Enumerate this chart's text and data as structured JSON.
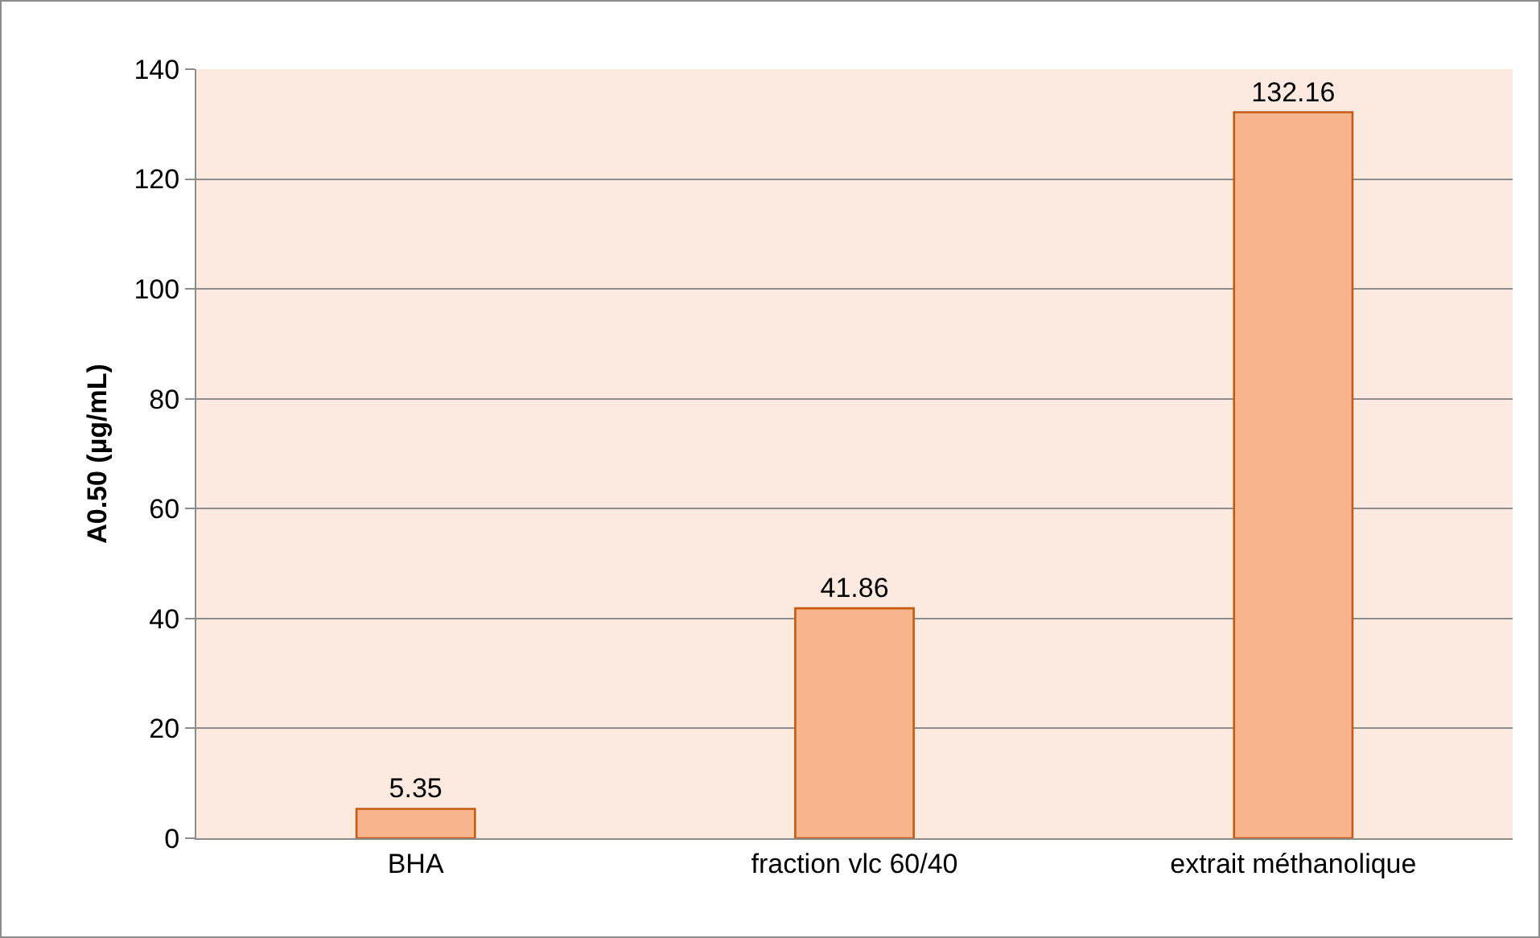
{
  "chart_data": {
    "type": "bar",
    "ylabel": "A0.50 (µg/mL)",
    "categories": [
      "BHA",
      "fraction vlc 60/40",
      "extrait méthanolique"
    ],
    "values": [
      5.35,
      41.86,
      132.16
    ],
    "color": "#f8b48d",
    "ylim": [
      0,
      140
    ],
    "yticks": [
      0,
      20,
      40,
      60,
      80,
      100,
      120,
      140
    ],
    "grid": "y",
    "data_labels": true
  }
}
